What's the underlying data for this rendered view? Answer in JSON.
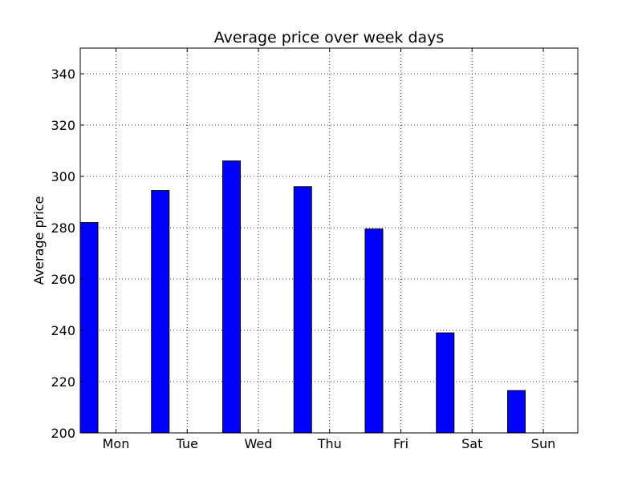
{
  "chart_data": {
    "type": "bar",
    "title": "Average price over week days",
    "xlabel": "",
    "ylabel": "Average price",
    "categories": [
      "Mon",
      "Tue",
      "Wed",
      "Thu",
      "Fri",
      "Sat",
      "Sun"
    ],
    "values": [
      282,
      294.5,
      306,
      296,
      279.5,
      239,
      216.5
    ],
    "ylim": [
      200,
      350
    ],
    "yticks": [
      200,
      220,
      240,
      260,
      280,
      300,
      320,
      340
    ],
    "grid": true,
    "bar_color": "#0000ff",
    "edge_color": "#000000"
  }
}
